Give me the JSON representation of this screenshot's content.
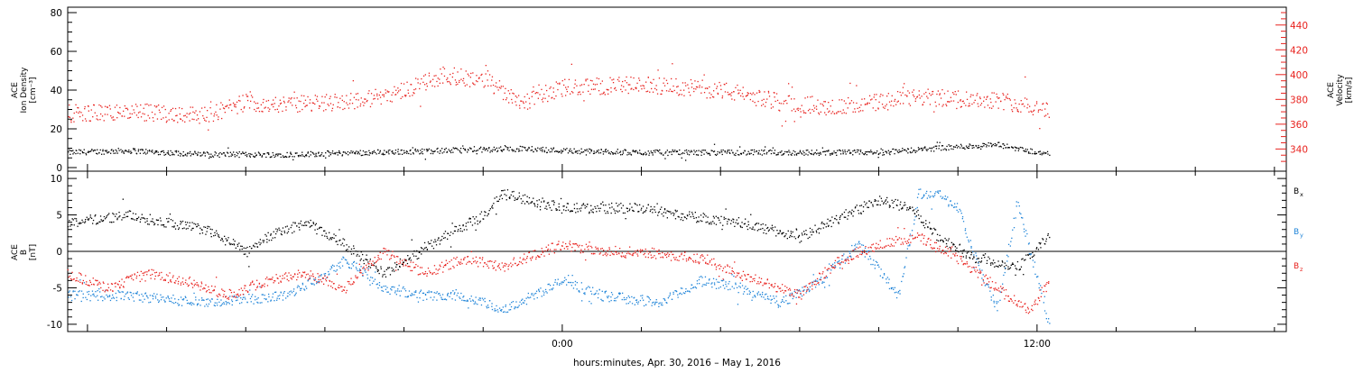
{
  "colors": {
    "black": "#000000",
    "red": "#e8221e",
    "blue": "#1f84d8",
    "axis": "#000000"
  },
  "xaxis": {
    "label": "hours:minutes, Apr. 30, 2016 – May  1, 2016",
    "ticks": [
      "0:00",
      "12:00"
    ]
  },
  "chart_data": [
    {
      "type": "scatter",
      "panel": "top",
      "ylabel_left": [
        "ACE",
        "Ion Density",
        "[cm⁻³]"
      ],
      "ylabel_right": [
        "ACE",
        "Velocity",
        "[km/s]"
      ],
      "x_range_hours": [
        -12.5,
        18.3
      ],
      "data_end_hours": 12.3,
      "ylim_left": [
        0,
        80
      ],
      "yticks_left": [
        "0",
        "20",
        "40",
        "60",
        "80"
      ],
      "ylim_right": [
        325,
        450
      ],
      "yticks_right": [
        "340",
        "360",
        "380",
        "400",
        "420",
        "440"
      ],
      "series": [
        {
          "axis": "left",
          "color": "black",
          "x": [
            -12.5,
            -11.0,
            -9.0,
            -7.0,
            -5.0,
            -3.0,
            -1.0,
            0.0,
            2.0,
            4.0,
            6.0,
            8.0,
            10.0,
            11.0,
            12.3
          ],
          "y": [
            8,
            9,
            7,
            7,
            8,
            9,
            10,
            9,
            8,
            8,
            8,
            8,
            11,
            12,
            7
          ]
        },
        {
          "axis": "right",
          "color": "red",
          "x": [
            -12.5,
            -11.0,
            -9.0,
            -8.0,
            -7.0,
            -5.0,
            -4.0,
            -3.0,
            -2.0,
            -1.0,
            0.0,
            2.0,
            4.0,
            5.5,
            7.0,
            9.0,
            11.0,
            12.3
          ],
          "y": [
            369,
            370,
            368,
            378,
            376,
            380,
            388,
            400,
            396,
            378,
            390,
            392,
            388,
            378,
            374,
            382,
            380,
            372
          ]
        }
      ]
    },
    {
      "type": "scatter",
      "panel": "bottom",
      "ylabel_left": [
        "ACE",
        "B",
        "[nT]"
      ],
      "ylim": [
        -11,
        11
      ],
      "yticks": [
        "-10",
        "-5",
        "0",
        "5",
        "10"
      ],
      "series": [
        {
          "name": "Bx",
          "color": "black",
          "x": [
            -12.5,
            -11.0,
            -10.0,
            -9.0,
            -8.0,
            -7.5,
            -6.5,
            -5.5,
            -4.5,
            -3.0,
            -2.0,
            -1.5,
            0.0,
            2.0,
            3.0,
            4.5,
            6.0,
            7.5,
            8.0,
            8.8,
            9.5,
            10.5,
            11.5,
            12.3
          ],
          "y": [
            4,
            5,
            4,
            3,
            0,
            2,
            4,
            1,
            -3,
            2,
            5,
            8,
            6,
            6,
            5,
            4,
            2,
            6,
            7,
            6,
            2,
            -1,
            -2,
            2
          ]
        },
        {
          "name": "By",
          "color": "blue",
          "x": [
            -12.5,
            -11.0,
            -9.0,
            -7.0,
            -6.0,
            -5.5,
            -4.5,
            -3.5,
            -2.5,
            -1.5,
            0.0,
            1.0,
            2.5,
            3.5,
            4.5,
            5.5,
            6.5,
            7.5,
            8.5,
            9.0,
            9.5,
            10.0,
            10.5,
            11.0,
            11.5,
            12.3
          ],
          "y": [
            -6,
            -6,
            -7,
            -6,
            -3,
            -1,
            -5,
            -6,
            -6,
            -8,
            -4,
            -6,
            -7,
            -4,
            -5,
            -7,
            -4,
            1,
            -6,
            8,
            8,
            6,
            -2,
            -8,
            7,
            -10
          ]
        },
        {
          "name": "Bz",
          "color": "red",
          "x": [
            -12.5,
            -11.5,
            -10.5,
            -9.5,
            -8.5,
            -7.5,
            -6.5,
            -5.5,
            -4.5,
            -3.5,
            -2.5,
            -1.5,
            0.0,
            1.0,
            2.0,
            3.5,
            5.0,
            6.0,
            7.0,
            8.0,
            9.0,
            10.0,
            11.0,
            11.8,
            12.3
          ],
          "y": [
            -3,
            -5,
            -3,
            -4,
            -6,
            -4,
            -3,
            -5,
            0,
            -3,
            -1,
            -2,
            1,
            0,
            0,
            -1,
            -4,
            -6,
            -1,
            1,
            2,
            -1,
            -5,
            -8,
            -4
          ]
        }
      ],
      "legend": [
        {
          "label": "B",
          "sub": "x",
          "color": "black"
        },
        {
          "label": "B",
          "sub": "y",
          "color": "blue"
        },
        {
          "label": "B",
          "sub": "z",
          "color": "red"
        }
      ]
    }
  ]
}
